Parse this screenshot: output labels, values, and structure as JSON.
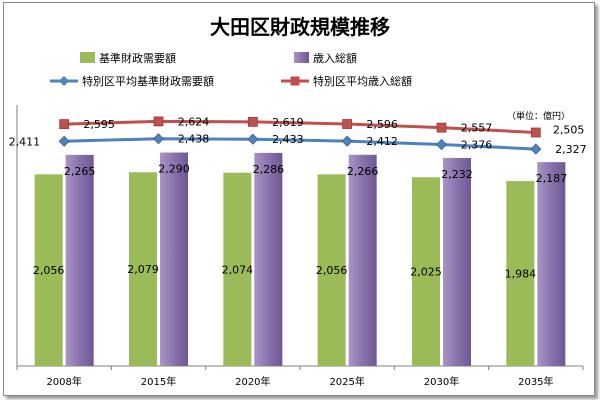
{
  "chart_data": {
    "type": "bar",
    "title": "大田区財政規模推移",
    "unit_note": "（単位：億円）",
    "categories": [
      "2008年",
      "2015年",
      "2020年",
      "2025年",
      "2030年",
      "2035年"
    ],
    "series": [
      {
        "name": "基準財政需要額",
        "kind": "bar",
        "color": "#9bbb59",
        "values": [
          2056,
          2079,
          2074,
          2056,
          2025,
          1984
        ],
        "labels": [
          "2,056",
          "2,079",
          "2,074",
          "2,056",
          "2,025",
          "1,984"
        ]
      },
      {
        "name": "歳入総額",
        "kind": "bar",
        "color": "#8064a2",
        "values": [
          2265,
          2290,
          2286,
          2266,
          2232,
          2187
        ],
        "labels": [
          "2,265",
          "2,290",
          "2,286",
          "2,266",
          "2,232",
          "2,187"
        ]
      },
      {
        "name": "特別区平均基準財政需要額",
        "kind": "line",
        "color": "#4f81bd",
        "values": [
          2411,
          2438,
          2433,
          2412,
          2376,
          2327
        ],
        "labels": [
          "2,411",
          "2,438",
          "2,433",
          "2,412",
          "2,376",
          "2,327"
        ]
      },
      {
        "name": "特別区平均歳入総額",
        "kind": "line",
        "color": "#c0504d",
        "values": [
          2595,
          2624,
          2619,
          2596,
          2557,
          2505
        ],
        "labels": [
          "2,595",
          "2,624",
          "2,619",
          "2,596",
          "2,557",
          "2,505"
        ]
      }
    ],
    "ylim": [
      0,
      2800
    ],
    "grid": false,
    "legend_position": "top"
  }
}
